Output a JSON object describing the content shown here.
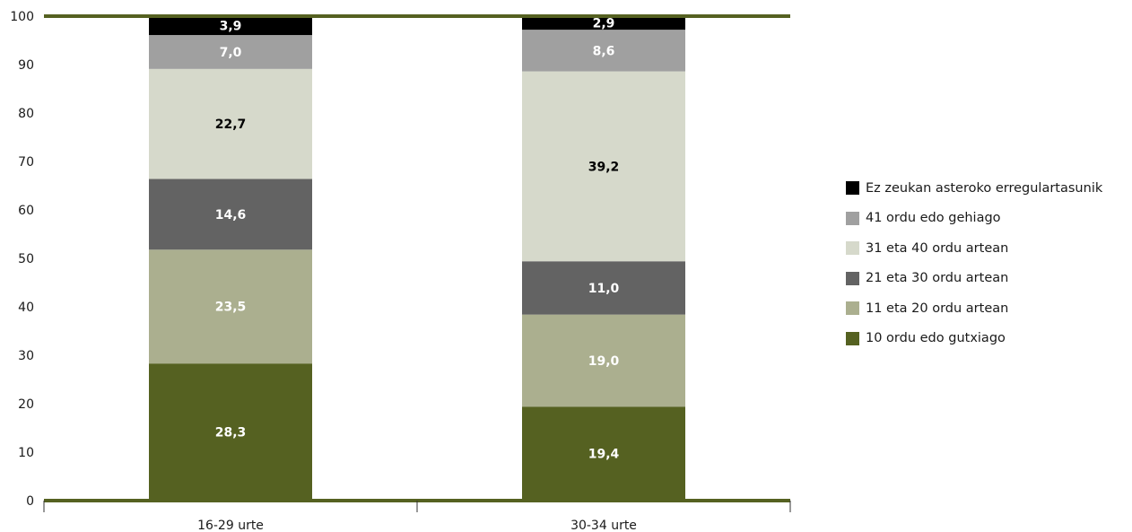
{
  "chart_data": {
    "type": "bar",
    "stacked": true,
    "categories": [
      "16-29 urte",
      "30-34 urte"
    ],
    "series": [
      {
        "name": "10 ordu edo gutxiago",
        "color": "#556121",
        "label_color": "#ffffff",
        "values": [
          28.3,
          19.4
        ],
        "labels": [
          "28,3",
          "19,4"
        ]
      },
      {
        "name": "11 eta 20 ordu artean",
        "color": "#abaf8f",
        "label_color": "#ffffff",
        "values": [
          23.5,
          19.0
        ],
        "labels": [
          "23,5",
          "19,0"
        ]
      },
      {
        "name": "21 eta 30 ordu artean",
        "color": "#636363",
        "label_color": "#ffffff",
        "values": [
          14.6,
          11.0
        ],
        "labels": [
          "14,6",
          "11,0"
        ]
      },
      {
        "name": "31 eta 40 ordu artean",
        "color": "#d6d9cb",
        "label_color": "#000000",
        "values": [
          22.7,
          39.2
        ],
        "labels": [
          "22,7",
          "39,2"
        ]
      },
      {
        "name": "41 ordu edo gehiago",
        "color": "#a0a0a0",
        "label_color": "#ffffff",
        "values": [
          7.0,
          8.6
        ],
        "labels": [
          "7,0",
          "8,6"
        ]
      },
      {
        "name": "Ez zeukan asteroko erregulartasunik",
        "color": "#000000",
        "label_color": "#ffffff",
        "values": [
          3.9,
          2.9
        ],
        "labels": [
          "3,9",
          "2,9"
        ]
      }
    ],
    "y_ticks": [
      "0",
      "10",
      "20",
      "30",
      "40",
      "50",
      "60",
      "70",
      "80",
      "90",
      "100"
    ],
    "ylim": [
      0,
      100
    ],
    "title": "",
    "xlabel": "",
    "ylabel": "",
    "grid": false,
    "legend_position": "right",
    "axis_color": "#556121"
  }
}
